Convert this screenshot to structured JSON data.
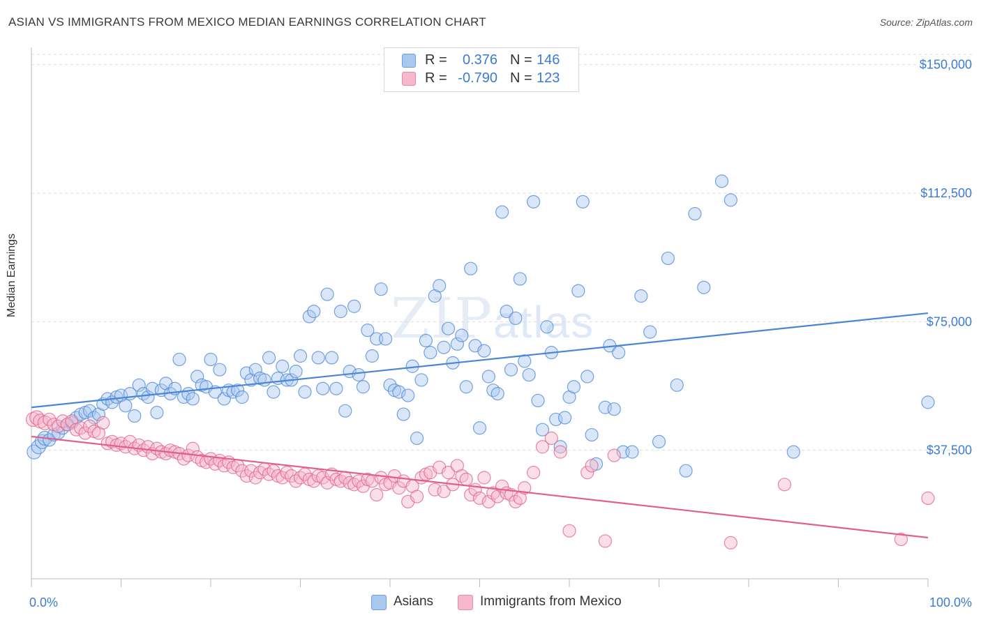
{
  "title": "ASIAN VS IMMIGRANTS FROM MEXICO MEDIAN EARNINGS CORRELATION CHART",
  "source": "Source: ZipAtlas.com",
  "watermark": {
    "zip": "ZIP",
    "atlas": "atlas"
  },
  "legend": {
    "rows": [
      {
        "r_label": "R =",
        "r_value": "0.376",
        "n_label": "N =",
        "n_value": "146",
        "color": "#a8c8f0"
      },
      {
        "r_label": "R =",
        "r_value": "-0.790",
        "n_label": "N =",
        "n_value": "123",
        "color": "#f5b8cc"
      }
    ]
  },
  "bottom_legend": [
    {
      "label": "Asians",
      "color": "#a8c8f0"
    },
    {
      "label": "Immigrants from Mexico",
      "color": "#f5b8cc"
    }
  ],
  "chart_data": {
    "type": "scatter",
    "title": "ASIAN VS IMMIGRANTS FROM MEXICO MEDIAN EARNINGS CORRELATION CHART",
    "ylabel": "Median Earnings",
    "xlabel": "",
    "xlim": [
      0,
      100
    ],
    "ylim": [
      0,
      153000
    ],
    "x_tick_labels": [
      "0.0%",
      "100.0%"
    ],
    "y_ticks": [
      37500,
      75000,
      112500,
      150000
    ],
    "y_tick_labels": [
      "$37,500",
      "$75,000",
      "$112,500",
      "$150,000"
    ],
    "grid": true,
    "series": [
      {
        "name": "Asians",
        "color": "#4a86d4",
        "fill": "#a8c8f0",
        "trend": {
          "x": [
            0,
            100
          ],
          "y": [
            50000,
            77500
          ]
        },
        "points": [
          [
            0.3,
            37000
          ],
          [
            0.8,
            38500
          ],
          [
            1.2,
            40000
          ],
          [
            1.5,
            41000
          ],
          [
            2.0,
            40500
          ],
          [
            2.5,
            42000
          ],
          [
            3.0,
            42500
          ],
          [
            3.5,
            44000
          ],
          [
            4.0,
            45000
          ],
          [
            4.5,
            45500
          ],
          [
            5.0,
            47000
          ],
          [
            5.5,
            48000
          ],
          [
            6.0,
            48500
          ],
          [
            6.5,
            49000
          ],
          [
            7.0,
            47000
          ],
          [
            7.5,
            48000
          ],
          [
            8.0,
            51000
          ],
          [
            8.5,
            52500
          ],
          [
            9.0,
            51500
          ],
          [
            9.5,
            53000
          ],
          [
            10.0,
            53500
          ],
          [
            10.5,
            50500
          ],
          [
            11.0,
            54000
          ],
          [
            11.5,
            47500
          ],
          [
            12.0,
            56500
          ],
          [
            12.5,
            54000
          ],
          [
            13.0,
            53000
          ],
          [
            13.5,
            55500
          ],
          [
            14.0,
            48500
          ],
          [
            14.5,
            55000
          ],
          [
            15.0,
            57000
          ],
          [
            15.5,
            54000
          ],
          [
            16.0,
            55500
          ],
          [
            16.5,
            64000
          ],
          [
            17.0,
            53000
          ],
          [
            17.5,
            54000
          ],
          [
            18.0,
            52500
          ],
          [
            18.5,
            59000
          ],
          [
            19.0,
            56500
          ],
          [
            19.5,
            56000
          ],
          [
            20.0,
            64000
          ],
          [
            20.5,
            54500
          ],
          [
            21.0,
            61000
          ],
          [
            21.5,
            52500
          ],
          [
            22.0,
            55000
          ],
          [
            22.5,
            54500
          ],
          [
            23.0,
            55000
          ],
          [
            23.5,
            53000
          ],
          [
            24.0,
            60000
          ],
          [
            24.5,
            58000
          ],
          [
            25.0,
            61000
          ],
          [
            25.5,
            58500
          ],
          [
            26.0,
            58000
          ],
          [
            26.5,
            64500
          ],
          [
            27.0,
            54500
          ],
          [
            27.5,
            58500
          ],
          [
            28.0,
            62000
          ],
          [
            28.5,
            58000
          ],
          [
            29.0,
            58000
          ],
          [
            29.5,
            60500
          ],
          [
            30.0,
            65000
          ],
          [
            30.5,
            54500
          ],
          [
            31.0,
            76500
          ],
          [
            31.5,
            78000
          ],
          [
            32.0,
            64500
          ],
          [
            32.5,
            55500
          ],
          [
            33.0,
            83000
          ],
          [
            33.5,
            64500
          ],
          [
            34.0,
            55500
          ],
          [
            34.5,
            78000
          ],
          [
            35.0,
            49000
          ],
          [
            35.5,
            60500
          ],
          [
            36.0,
            79500
          ],
          [
            36.5,
            59500
          ],
          [
            37.0,
            56000
          ],
          [
            37.5,
            72500
          ],
          [
            38.0,
            65000
          ],
          [
            38.5,
            70000
          ],
          [
            39.0,
            84500
          ],
          [
            39.5,
            70000
          ],
          [
            40.0,
            56500
          ],
          [
            40.5,
            55000
          ],
          [
            41.0,
            54500
          ],
          [
            41.5,
            48000
          ],
          [
            42.0,
            53500
          ],
          [
            42.5,
            62000
          ],
          [
            43.0,
            41000
          ],
          [
            43.5,
            58000
          ],
          [
            44.0,
            69500
          ],
          [
            44.5,
            66000
          ],
          [
            45.0,
            82500
          ],
          [
            45.5,
            85500
          ],
          [
            46.0,
            67500
          ],
          [
            46.5,
            73000
          ],
          [
            47.0,
            63000
          ],
          [
            47.5,
            68500
          ],
          [
            48.0,
            71000
          ],
          [
            48.5,
            56000
          ],
          [
            49.0,
            90500
          ],
          [
            49.5,
            68000
          ],
          [
            50.0,
            44000
          ],
          [
            50.5,
            66500
          ],
          [
            51.0,
            59000
          ],
          [
            51.5,
            55000
          ],
          [
            52.0,
            54000
          ],
          [
            52.5,
            107000
          ],
          [
            53.0,
            78000
          ],
          [
            53.5,
            61000
          ],
          [
            54.0,
            76000
          ],
          [
            54.5,
            87500
          ],
          [
            55.0,
            63500
          ],
          [
            55.5,
            59500
          ],
          [
            56.0,
            110000
          ],
          [
            56.5,
            52000
          ],
          [
            57.0,
            43500
          ],
          [
            57.5,
            73500
          ],
          [
            58.0,
            66000
          ],
          [
            58.5,
            46500
          ],
          [
            59.0,
            38500
          ],
          [
            59.5,
            47000
          ],
          [
            60.0,
            53000
          ],
          [
            60.5,
            56000
          ],
          [
            61.0,
            84000
          ],
          [
            61.5,
            110000
          ],
          [
            62.0,
            59000
          ],
          [
            62.5,
            42000
          ],
          [
            63.0,
            33500
          ],
          [
            64.0,
            50000
          ],
          [
            64.5,
            68000
          ],
          [
            65.0,
            49500
          ],
          [
            65.5,
            66000
          ],
          [
            66.0,
            37000
          ],
          [
            67.0,
            37000
          ],
          [
            68.0,
            82500
          ],
          [
            69.0,
            72000
          ],
          [
            70.0,
            40000
          ],
          [
            71.0,
            93500
          ],
          [
            72.0,
            56500
          ],
          [
            73.0,
            31500
          ],
          [
            74.0,
            106500
          ],
          [
            75.0,
            85000
          ],
          [
            77.0,
            116000
          ],
          [
            78.0,
            110500
          ],
          [
            85.0,
            37000
          ],
          [
            100.0,
            51500
          ]
        ]
      },
      {
        "name": "Immigrants from Mexico",
        "color": "#e0608a",
        "fill": "#f5b8cc",
        "trend": {
          "x": [
            0,
            100
          ],
          "y": [
            41500,
            12000
          ]
        },
        "points": [
          [
            0.2,
            46500
          ],
          [
            0.6,
            47000
          ],
          [
            1.0,
            46000
          ],
          [
            1.5,
            45500
          ],
          [
            2.0,
            46500
          ],
          [
            2.5,
            45000
          ],
          [
            3.0,
            44500
          ],
          [
            3.5,
            46000
          ],
          [
            4.0,
            45000
          ],
          [
            4.5,
            46000
          ],
          [
            5.0,
            43500
          ],
          [
            5.5,
            44000
          ],
          [
            6.0,
            42500
          ],
          [
            6.5,
            44500
          ],
          [
            7.0,
            43000
          ],
          [
            7.5,
            42500
          ],
          [
            8.0,
            45500
          ],
          [
            8.5,
            39500
          ],
          [
            9.0,
            40000
          ],
          [
            9.5,
            39000
          ],
          [
            10.0,
            39500
          ],
          [
            10.5,
            38500
          ],
          [
            11.0,
            40000
          ],
          [
            11.5,
            38000
          ],
          [
            12.0,
            39000
          ],
          [
            12.5,
            37500
          ],
          [
            13.0,
            38500
          ],
          [
            13.5,
            36500
          ],
          [
            14.0,
            38000
          ],
          [
            14.5,
            37000
          ],
          [
            15.0,
            36500
          ],
          [
            15.5,
            37500
          ],
          [
            16.0,
            37000
          ],
          [
            16.5,
            36500
          ],
          [
            17.0,
            35000
          ],
          [
            17.5,
            36000
          ],
          [
            18.0,
            38000
          ],
          [
            18.5,
            35500
          ],
          [
            19.0,
            34500
          ],
          [
            19.5,
            34000
          ],
          [
            20.0,
            35000
          ],
          [
            20.5,
            33500
          ],
          [
            21.0,
            34500
          ],
          [
            21.5,
            33000
          ],
          [
            22.0,
            34000
          ],
          [
            22.5,
            32500
          ],
          [
            23.0,
            33000
          ],
          [
            23.5,
            31500
          ],
          [
            24.0,
            30000
          ],
          [
            24.5,
            31500
          ],
          [
            25.0,
            29500
          ],
          [
            25.5,
            31000
          ],
          [
            26.0,
            32000
          ],
          [
            26.5,
            30500
          ],
          [
            27.0,
            31500
          ],
          [
            27.5,
            30000
          ],
          [
            28.0,
            29500
          ],
          [
            28.5,
            31000
          ],
          [
            29.0,
            30000
          ],
          [
            29.5,
            28500
          ],
          [
            30.0,
            29500
          ],
          [
            30.5,
            30500
          ],
          [
            31.0,
            29000
          ],
          [
            31.5,
            28500
          ],
          [
            32.0,
            30000
          ],
          [
            32.5,
            29500
          ],
          [
            33.0,
            28000
          ],
          [
            33.5,
            30500
          ],
          [
            34.0,
            29000
          ],
          [
            34.5,
            28500
          ],
          [
            35.0,
            29500
          ],
          [
            35.5,
            28000
          ],
          [
            36.0,
            27500
          ],
          [
            36.5,
            28500
          ],
          [
            37.0,
            27000
          ],
          [
            37.5,
            29000
          ],
          [
            38.0,
            28500
          ],
          [
            38.5,
            24500
          ],
          [
            39.0,
            29500
          ],
          [
            39.5,
            27500
          ],
          [
            40.0,
            28000
          ],
          [
            40.5,
            30000
          ],
          [
            41.0,
            26500
          ],
          [
            41.5,
            28500
          ],
          [
            42.0,
            22500
          ],
          [
            42.5,
            27000
          ],
          [
            43.0,
            24000
          ],
          [
            43.5,
            29500
          ],
          [
            44.0,
            30500
          ],
          [
            44.5,
            31000
          ],
          [
            45.0,
            26000
          ],
          [
            45.5,
            32500
          ],
          [
            46.0,
            25500
          ],
          [
            46.5,
            31000
          ],
          [
            47.0,
            27500
          ],
          [
            47.5,
            33000
          ],
          [
            48.0,
            30000
          ],
          [
            48.5,
            29000
          ],
          [
            49.0,
            24500
          ],
          [
            49.5,
            26000
          ],
          [
            50.0,
            23500
          ],
          [
            50.5,
            29500
          ],
          [
            51.0,
            22500
          ],
          [
            51.5,
            25000
          ],
          [
            52.0,
            24000
          ],
          [
            52.5,
            27000
          ],
          [
            53.0,
            25000
          ],
          [
            53.5,
            24500
          ],
          [
            54.0,
            22500
          ],
          [
            54.5,
            23500
          ],
          [
            55.0,
            26500
          ],
          [
            56.0,
            31000
          ],
          [
            57.0,
            38500
          ],
          [
            58.0,
            41000
          ],
          [
            59.0,
            37000
          ],
          [
            60.0,
            14000
          ],
          [
            62.0,
            31000
          ],
          [
            62.5,
            33000
          ],
          [
            64.0,
            11000
          ],
          [
            65.0,
            36000
          ],
          [
            78.0,
            10500
          ],
          [
            84.0,
            27500
          ],
          [
            97.0,
            11500
          ],
          [
            100.0,
            23500
          ]
        ]
      }
    ]
  }
}
